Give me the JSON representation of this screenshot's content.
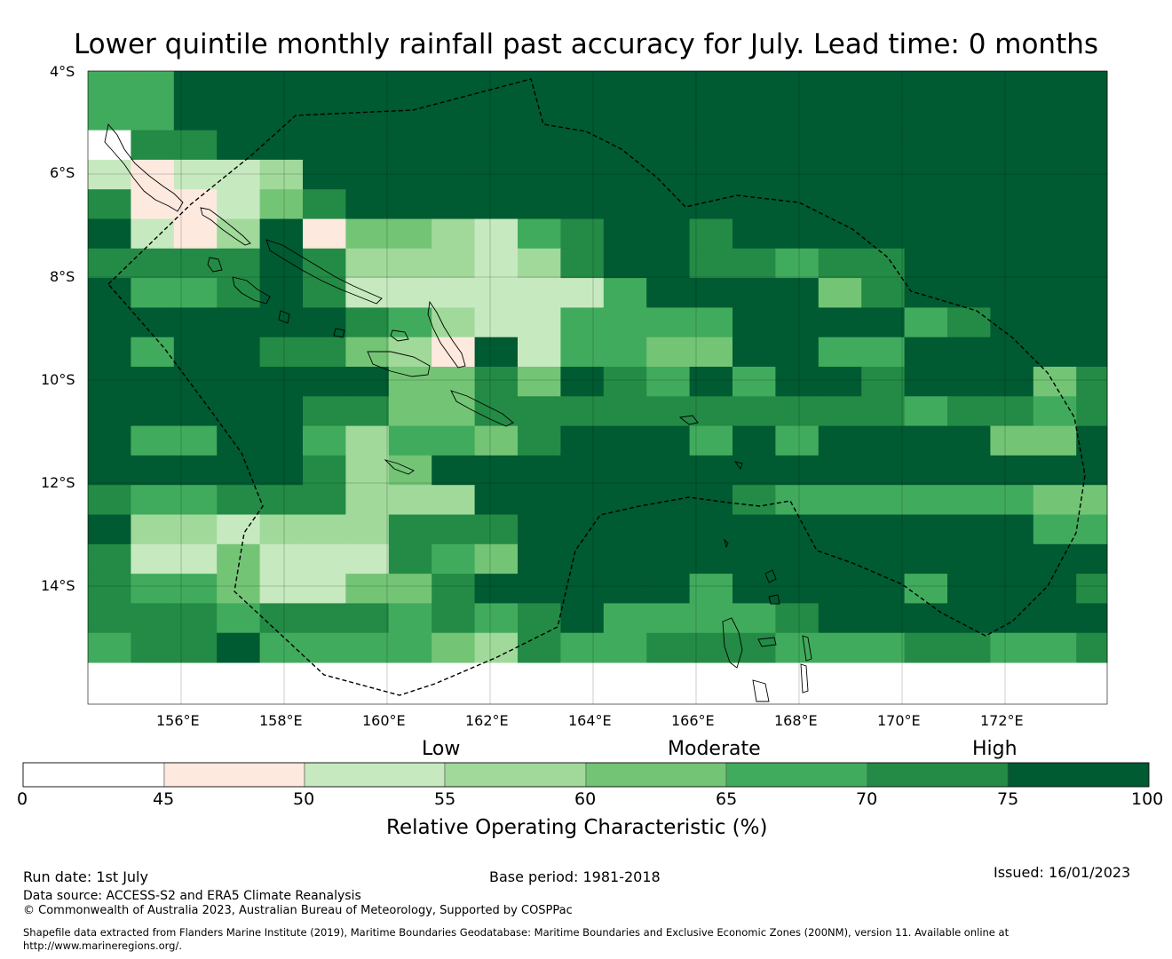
{
  "title": "Lower quintile monthly rainfall past accuracy for July. Lead time: 0 months",
  "map": {
    "region": "Solomon Islands",
    "lat_labels": [
      "4°S",
      "6°S",
      "8°S",
      "10°S",
      "12°S",
      "14°S"
    ],
    "lon_labels": [
      "156°E",
      "158°E",
      "160°E",
      "162°E",
      "164°E",
      "166°E",
      "168°E",
      "170°E",
      "172°E"
    ],
    "grid_rows": [
      "66000000000000000000000",
      "55000000000000000000000",
      "0x660000000000000000000",
      "32223000000000000000000",
      "62334460000000000000000",
      "0211013442566000000000",
      "6666063433360066566000066",
      "0556064332222330044006006",
      "0000006544044000000000000",
      "0500066000040025055000660",
      "0000000034404000000000400"
    ],
    "color_legend_note": "grid cells coloured by ROC class; see colorbar"
  },
  "colorbar": {
    "category_labels": [
      "Low",
      "Moderate",
      "High"
    ],
    "ticks": [
      "0",
      "45",
      "50",
      "55",
      "60",
      "65",
      "70",
      "75",
      "100"
    ],
    "colors": [
      "#ffffff",
      "#fee9df",
      "#c7e9c0",
      "#a1d99b",
      "#74c476",
      "#41ab5d",
      "#238b45",
      "#005a32"
    ],
    "label": "Relative Operating Characteristic (%)"
  },
  "footer": {
    "run_date": "Run date: 1st July",
    "base_period": "Base period: 1981-2018",
    "issued": "Issued: 16/01/2023",
    "data_source": "Data source: ACCESS-S2 and ERA5 Climate Reanalysis",
    "copyright": "© Commonwealth of Australia 2023, Australian Bureau of Meteorology, Supported by COSPPac",
    "shapefile_line1": "Shapefile data extracted from Flanders Marine Institute (2019), Maritime Boundaries Geodatabase: Maritime Boundaries and Exclusive Economic Zones (200NM), version 11. Available online at",
    "shapefile_line2": "http://www.marineregions.org/."
  }
}
